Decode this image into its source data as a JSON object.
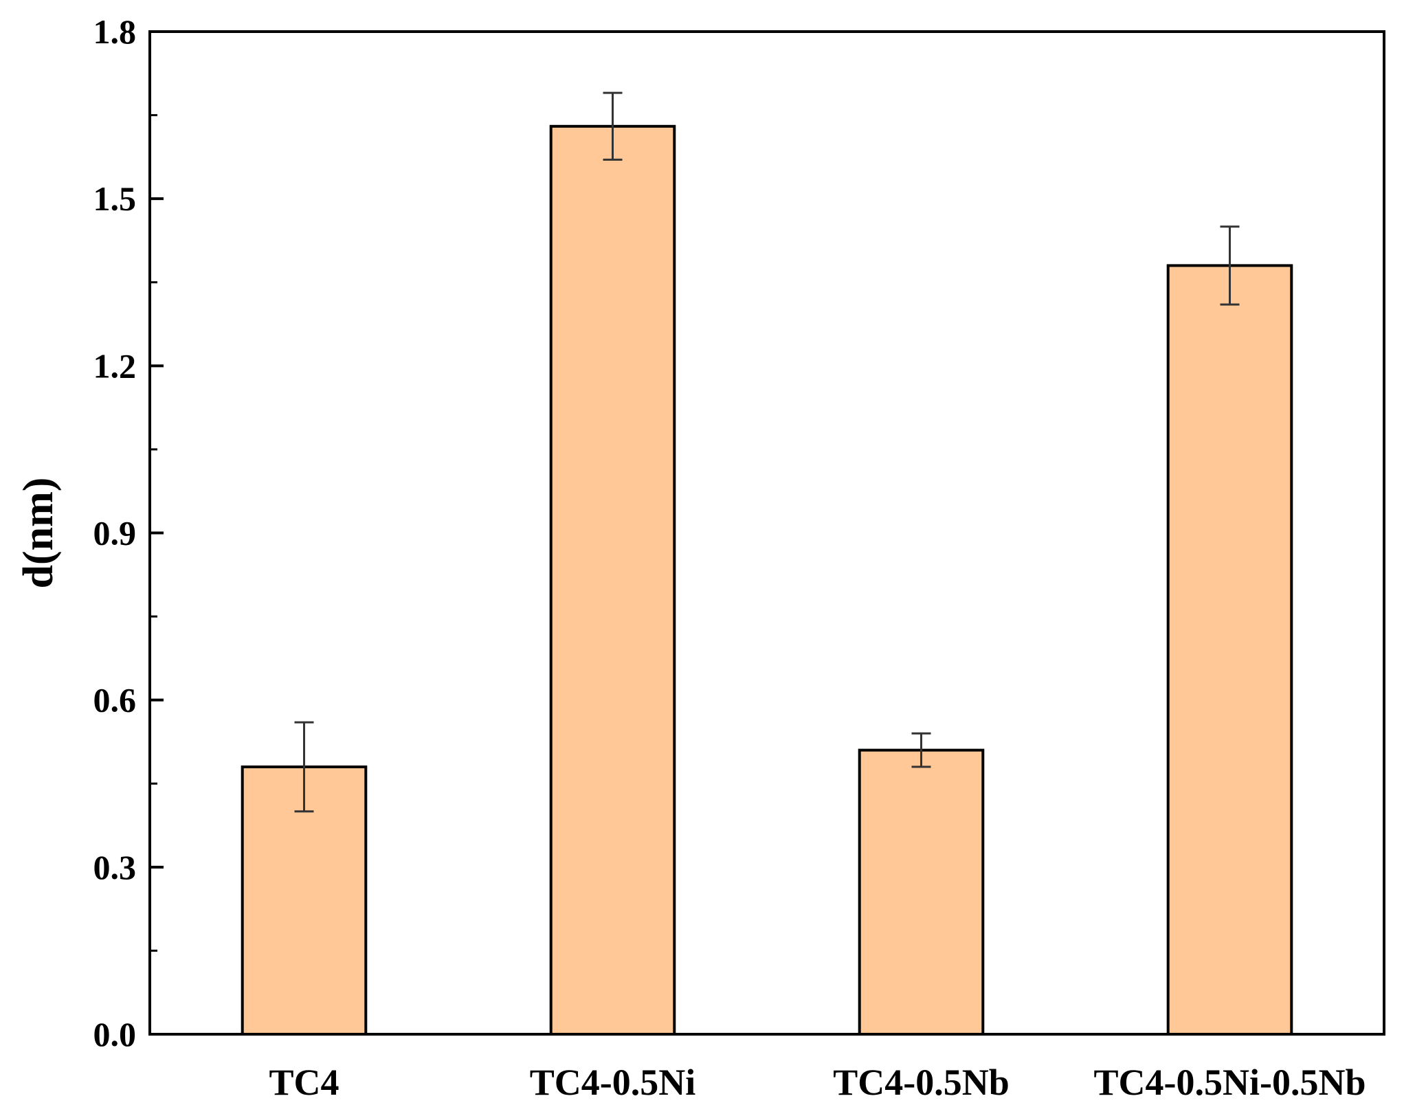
{
  "chart_data": {
    "type": "bar",
    "title": "",
    "xlabel": "",
    "ylabel": "d(nm)",
    "categories": [
      "TC4",
      "TC4-0.5Ni",
      "TC4-0.5Nb",
      "TC4-0.5Ni-0.5Nb"
    ],
    "values": [
      0.48,
      1.63,
      0.51,
      1.38
    ],
    "errors": [
      0.08,
      0.06,
      0.03,
      0.07
    ],
    "ylim": [
      0.0,
      1.8
    ],
    "yticks": [
      "0.0",
      "0.3",
      "0.6",
      "0.9",
      "1.2",
      "1.5",
      "1.8"
    ],
    "ytick_values": [
      0.0,
      0.3,
      0.6,
      0.9,
      1.2,
      1.5,
      1.8
    ],
    "grid": false,
    "legend": "none",
    "colors": {
      "bar_fill": "#FFC896",
      "bar_edge": "#000000",
      "error_bar": "#333333",
      "axis": "#000000"
    }
  }
}
